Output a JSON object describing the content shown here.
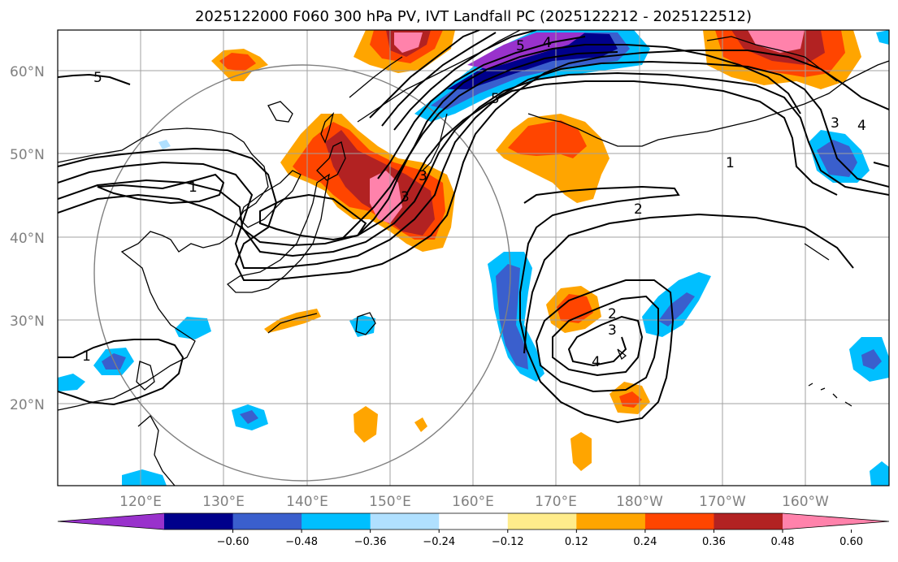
{
  "title": "2025122000 F060 300 hPa PV, IVT Landfall PC (2025122212 - 2025122512)",
  "lat_labels": [
    "60°N",
    "50°N",
    "40°N",
    "30°N",
    "20°N"
  ],
  "lon_labels": [
    "120°E",
    "130°E",
    "140°E",
    "150°E",
    "160°E",
    "170°E",
    "180°W",
    "170°W",
    "160°W"
  ],
  "colorbar": {
    "colors": [
      "#9932CC",
      "#00008B",
      "#3A5FCD",
      "#00BFFF",
      "#B0E0FF",
      "#FFFFFF",
      "#FFEC8B",
      "#FFA500",
      "#FF4500",
      "#B22222",
      "#FF82AB"
    ],
    "ticks": [
      "−0.60",
      "−0.48",
      "−0.36",
      "−0.24",
      "−0.12",
      "0.12",
      "0.24",
      "0.36",
      "0.48",
      "0.60"
    ]
  },
  "contour_labels": [
    "5",
    "1",
    "1",
    "5",
    "4",
    "5",
    "3",
    "3",
    "1",
    "2",
    "2",
    "3",
    "4",
    "3",
    "4"
  ]
}
